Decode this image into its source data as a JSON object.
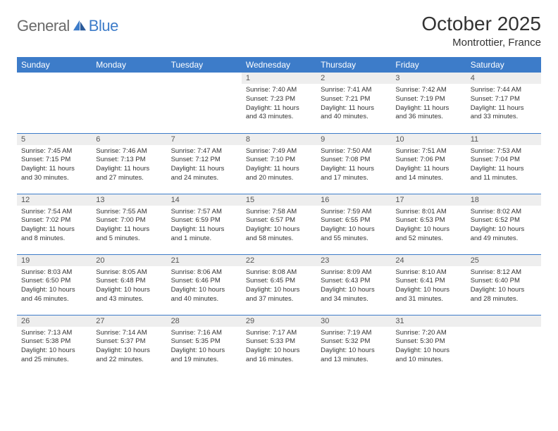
{
  "logo": {
    "general": "General",
    "blue": "Blue"
  },
  "title": "October 2025",
  "location": "Montrottier, France",
  "header_bg": "#3d7cc9",
  "weekdays": [
    "Sunday",
    "Monday",
    "Tuesday",
    "Wednesday",
    "Thursday",
    "Friday",
    "Saturday"
  ],
  "weeks": [
    [
      null,
      null,
      null,
      {
        "n": "1",
        "sr": "7:40 AM",
        "ss": "7:23 PM",
        "dl": "11 hours and 43 minutes."
      },
      {
        "n": "2",
        "sr": "7:41 AM",
        "ss": "7:21 PM",
        "dl": "11 hours and 40 minutes."
      },
      {
        "n": "3",
        "sr": "7:42 AM",
        "ss": "7:19 PM",
        "dl": "11 hours and 36 minutes."
      },
      {
        "n": "4",
        "sr": "7:44 AM",
        "ss": "7:17 PM",
        "dl": "11 hours and 33 minutes."
      }
    ],
    [
      {
        "n": "5",
        "sr": "7:45 AM",
        "ss": "7:15 PM",
        "dl": "11 hours and 30 minutes."
      },
      {
        "n": "6",
        "sr": "7:46 AM",
        "ss": "7:13 PM",
        "dl": "11 hours and 27 minutes."
      },
      {
        "n": "7",
        "sr": "7:47 AM",
        "ss": "7:12 PM",
        "dl": "11 hours and 24 minutes."
      },
      {
        "n": "8",
        "sr": "7:49 AM",
        "ss": "7:10 PM",
        "dl": "11 hours and 20 minutes."
      },
      {
        "n": "9",
        "sr": "7:50 AM",
        "ss": "7:08 PM",
        "dl": "11 hours and 17 minutes."
      },
      {
        "n": "10",
        "sr": "7:51 AM",
        "ss": "7:06 PM",
        "dl": "11 hours and 14 minutes."
      },
      {
        "n": "11",
        "sr": "7:53 AM",
        "ss": "7:04 PM",
        "dl": "11 hours and 11 minutes."
      }
    ],
    [
      {
        "n": "12",
        "sr": "7:54 AM",
        "ss": "7:02 PM",
        "dl": "11 hours and 8 minutes."
      },
      {
        "n": "13",
        "sr": "7:55 AM",
        "ss": "7:00 PM",
        "dl": "11 hours and 5 minutes."
      },
      {
        "n": "14",
        "sr": "7:57 AM",
        "ss": "6:59 PM",
        "dl": "11 hours and 1 minute."
      },
      {
        "n": "15",
        "sr": "7:58 AM",
        "ss": "6:57 PM",
        "dl": "10 hours and 58 minutes."
      },
      {
        "n": "16",
        "sr": "7:59 AM",
        "ss": "6:55 PM",
        "dl": "10 hours and 55 minutes."
      },
      {
        "n": "17",
        "sr": "8:01 AM",
        "ss": "6:53 PM",
        "dl": "10 hours and 52 minutes."
      },
      {
        "n": "18",
        "sr": "8:02 AM",
        "ss": "6:52 PM",
        "dl": "10 hours and 49 minutes."
      }
    ],
    [
      {
        "n": "19",
        "sr": "8:03 AM",
        "ss": "6:50 PM",
        "dl": "10 hours and 46 minutes."
      },
      {
        "n": "20",
        "sr": "8:05 AM",
        "ss": "6:48 PM",
        "dl": "10 hours and 43 minutes."
      },
      {
        "n": "21",
        "sr": "8:06 AM",
        "ss": "6:46 PM",
        "dl": "10 hours and 40 minutes."
      },
      {
        "n": "22",
        "sr": "8:08 AM",
        "ss": "6:45 PM",
        "dl": "10 hours and 37 minutes."
      },
      {
        "n": "23",
        "sr": "8:09 AM",
        "ss": "6:43 PM",
        "dl": "10 hours and 34 minutes."
      },
      {
        "n": "24",
        "sr": "8:10 AM",
        "ss": "6:41 PM",
        "dl": "10 hours and 31 minutes."
      },
      {
        "n": "25",
        "sr": "8:12 AM",
        "ss": "6:40 PM",
        "dl": "10 hours and 28 minutes."
      }
    ],
    [
      {
        "n": "26",
        "sr": "7:13 AM",
        "ss": "5:38 PM",
        "dl": "10 hours and 25 minutes."
      },
      {
        "n": "27",
        "sr": "7:14 AM",
        "ss": "5:37 PM",
        "dl": "10 hours and 22 minutes."
      },
      {
        "n": "28",
        "sr": "7:16 AM",
        "ss": "5:35 PM",
        "dl": "10 hours and 19 minutes."
      },
      {
        "n": "29",
        "sr": "7:17 AM",
        "ss": "5:33 PM",
        "dl": "10 hours and 16 minutes."
      },
      {
        "n": "30",
        "sr": "7:19 AM",
        "ss": "5:32 PM",
        "dl": "10 hours and 13 minutes."
      },
      {
        "n": "31",
        "sr": "7:20 AM",
        "ss": "5:30 PM",
        "dl": "10 hours and 10 minutes."
      },
      null
    ]
  ],
  "labels": {
    "sunrise": "Sunrise: ",
    "sunset": "Sunset: ",
    "daylight": "Daylight: "
  }
}
